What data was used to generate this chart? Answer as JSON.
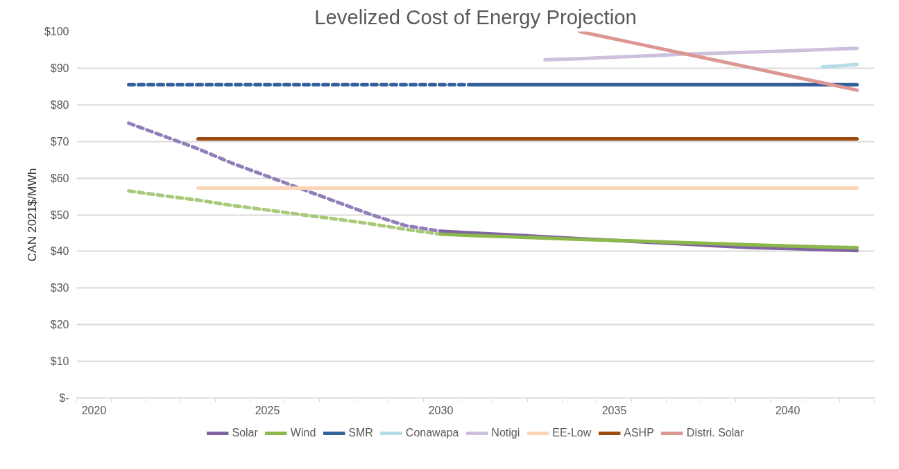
{
  "chart_data": {
    "type": "line",
    "title": "Levelized Cost of Energy Projection",
    "ylabel": "CAN 2021$/MWh",
    "categories": [
      "2020",
      null,
      null,
      null,
      null,
      "2025",
      null,
      null,
      null,
      null,
      "2030",
      null,
      null,
      null,
      null,
      "2035",
      null,
      null,
      null,
      null,
      "2040",
      null,
      null
    ],
    "ylim": [
      0,
      100
    ],
    "yticks": [
      {
        "value": 0,
        "label": "$-"
      },
      {
        "value": 10,
        "label": "$10"
      },
      {
        "value": 20,
        "label": "$20"
      },
      {
        "value": 30,
        "label": "$30"
      },
      {
        "value": 40,
        "label": "$40"
      },
      {
        "value": 50,
        "label": "$50"
      },
      {
        "value": 60,
        "label": "$60"
      },
      {
        "value": 70,
        "label": "$70"
      },
      {
        "value": 80,
        "label": "$80"
      },
      {
        "value": 90,
        "label": "$90"
      },
      {
        "value": 100,
        "label": "$100"
      }
    ],
    "grid": "y",
    "legend": "bottom",
    "line_style": "solid",
    "series": [
      {
        "color": "#917fb9",
        "line_style": "dashed",
        "values": [
          null,
          75,
          71.5,
          68,
          64,
          60.5,
          57,
          53.5,
          50,
          47,
          45.5,
          null,
          null,
          null,
          null,
          null,
          null,
          null,
          null,
          null,
          null,
          null,
          null
        ]
      },
      {
        "color": "#a9c97a",
        "line_style": "dashed",
        "values": [
          null,
          56.5,
          55.2,
          54,
          52.5,
          51.3,
          50,
          48.8,
          47.5,
          46,
          44.7,
          null,
          null,
          null,
          null,
          null,
          null,
          null,
          null,
          null,
          null,
          null,
          null
        ]
      },
      {
        "color": "#35619a",
        "line_style": "dashed",
        "values": [
          null,
          85.5,
          85.5,
          85.5,
          85.5,
          85.5,
          85.5,
          85.5,
          85.5,
          85.5,
          85.5,
          85.5,
          null,
          null,
          null,
          null,
          null,
          null,
          null,
          null,
          null,
          null,
          null
        ]
      },
      {
        "name": "Solar",
        "color": "#8064a2",
        "values": [
          null,
          null,
          null,
          null,
          null,
          null,
          null,
          null,
          null,
          null,
          45.5,
          45,
          44.5,
          44,
          43.5,
          43,
          42.5,
          42,
          41.5,
          41,
          40.8,
          40.5,
          40.2
        ]
      },
      {
        "name": "Wind",
        "color": "#8cb84b",
        "values": [
          null,
          null,
          null,
          null,
          null,
          null,
          null,
          null,
          null,
          null,
          44.7,
          44.3,
          44,
          43.6,
          43.3,
          43,
          42.7,
          42.4,
          42.1,
          41.8,
          41.5,
          41.2,
          41
        ]
      },
      {
        "name": "SMR",
        "color": "#35619a",
        "values": [
          null,
          null,
          null,
          null,
          null,
          null,
          null,
          null,
          null,
          null,
          null,
          85.5,
          85.5,
          85.5,
          85.5,
          85.5,
          85.5,
          85.5,
          85.5,
          85.5,
          85.5,
          85.5,
          85.5
        ]
      },
      {
        "name": "Conawapa",
        "color": "#b6dde6",
        "values": [
          null,
          null,
          null,
          null,
          null,
          null,
          null,
          null,
          null,
          null,
          null,
          null,
          null,
          null,
          null,
          null,
          null,
          null,
          null,
          null,
          null,
          90.3,
          91
        ]
      },
      {
        "name": "Notigi",
        "color": "#ccc0dc",
        "values": [
          null,
          null,
          null,
          null,
          null,
          null,
          null,
          null,
          null,
          null,
          null,
          null,
          null,
          92.3,
          92.6,
          93,
          93.4,
          93.8,
          94.1,
          94.4,
          94.7,
          95.1,
          95.4
        ]
      },
      {
        "name": "EE-Low",
        "color": "#fbd5b5",
        "values": [
          null,
          null,
          null,
          57.3,
          57.3,
          57.3,
          57.3,
          57.3,
          57.3,
          57.3,
          57.3,
          57.3,
          57.3,
          57.3,
          57.3,
          57.3,
          57.3,
          57.3,
          57.3,
          57.3,
          57.3,
          57.3,
          57.3
        ]
      },
      {
        "name": "ASHP",
        "color": "#9c4a0e",
        "values": [
          null,
          null,
          null,
          70.7,
          70.7,
          70.7,
          70.7,
          70.7,
          70.7,
          70.7,
          70.7,
          70.7,
          70.7,
          70.7,
          70.7,
          70.7,
          70.7,
          70.7,
          70.7,
          70.7,
          70.7,
          70.7,
          70.7
        ]
      },
      {
        "name": "Distri. Solar",
        "color": "#dc9694",
        "values": [
          null,
          null,
          null,
          null,
          null,
          null,
          null,
          null,
          null,
          null,
          null,
          null,
          null,
          null,
          100,
          98,
          96,
          94,
          92,
          90,
          88,
          86,
          84
        ]
      }
    ]
  }
}
